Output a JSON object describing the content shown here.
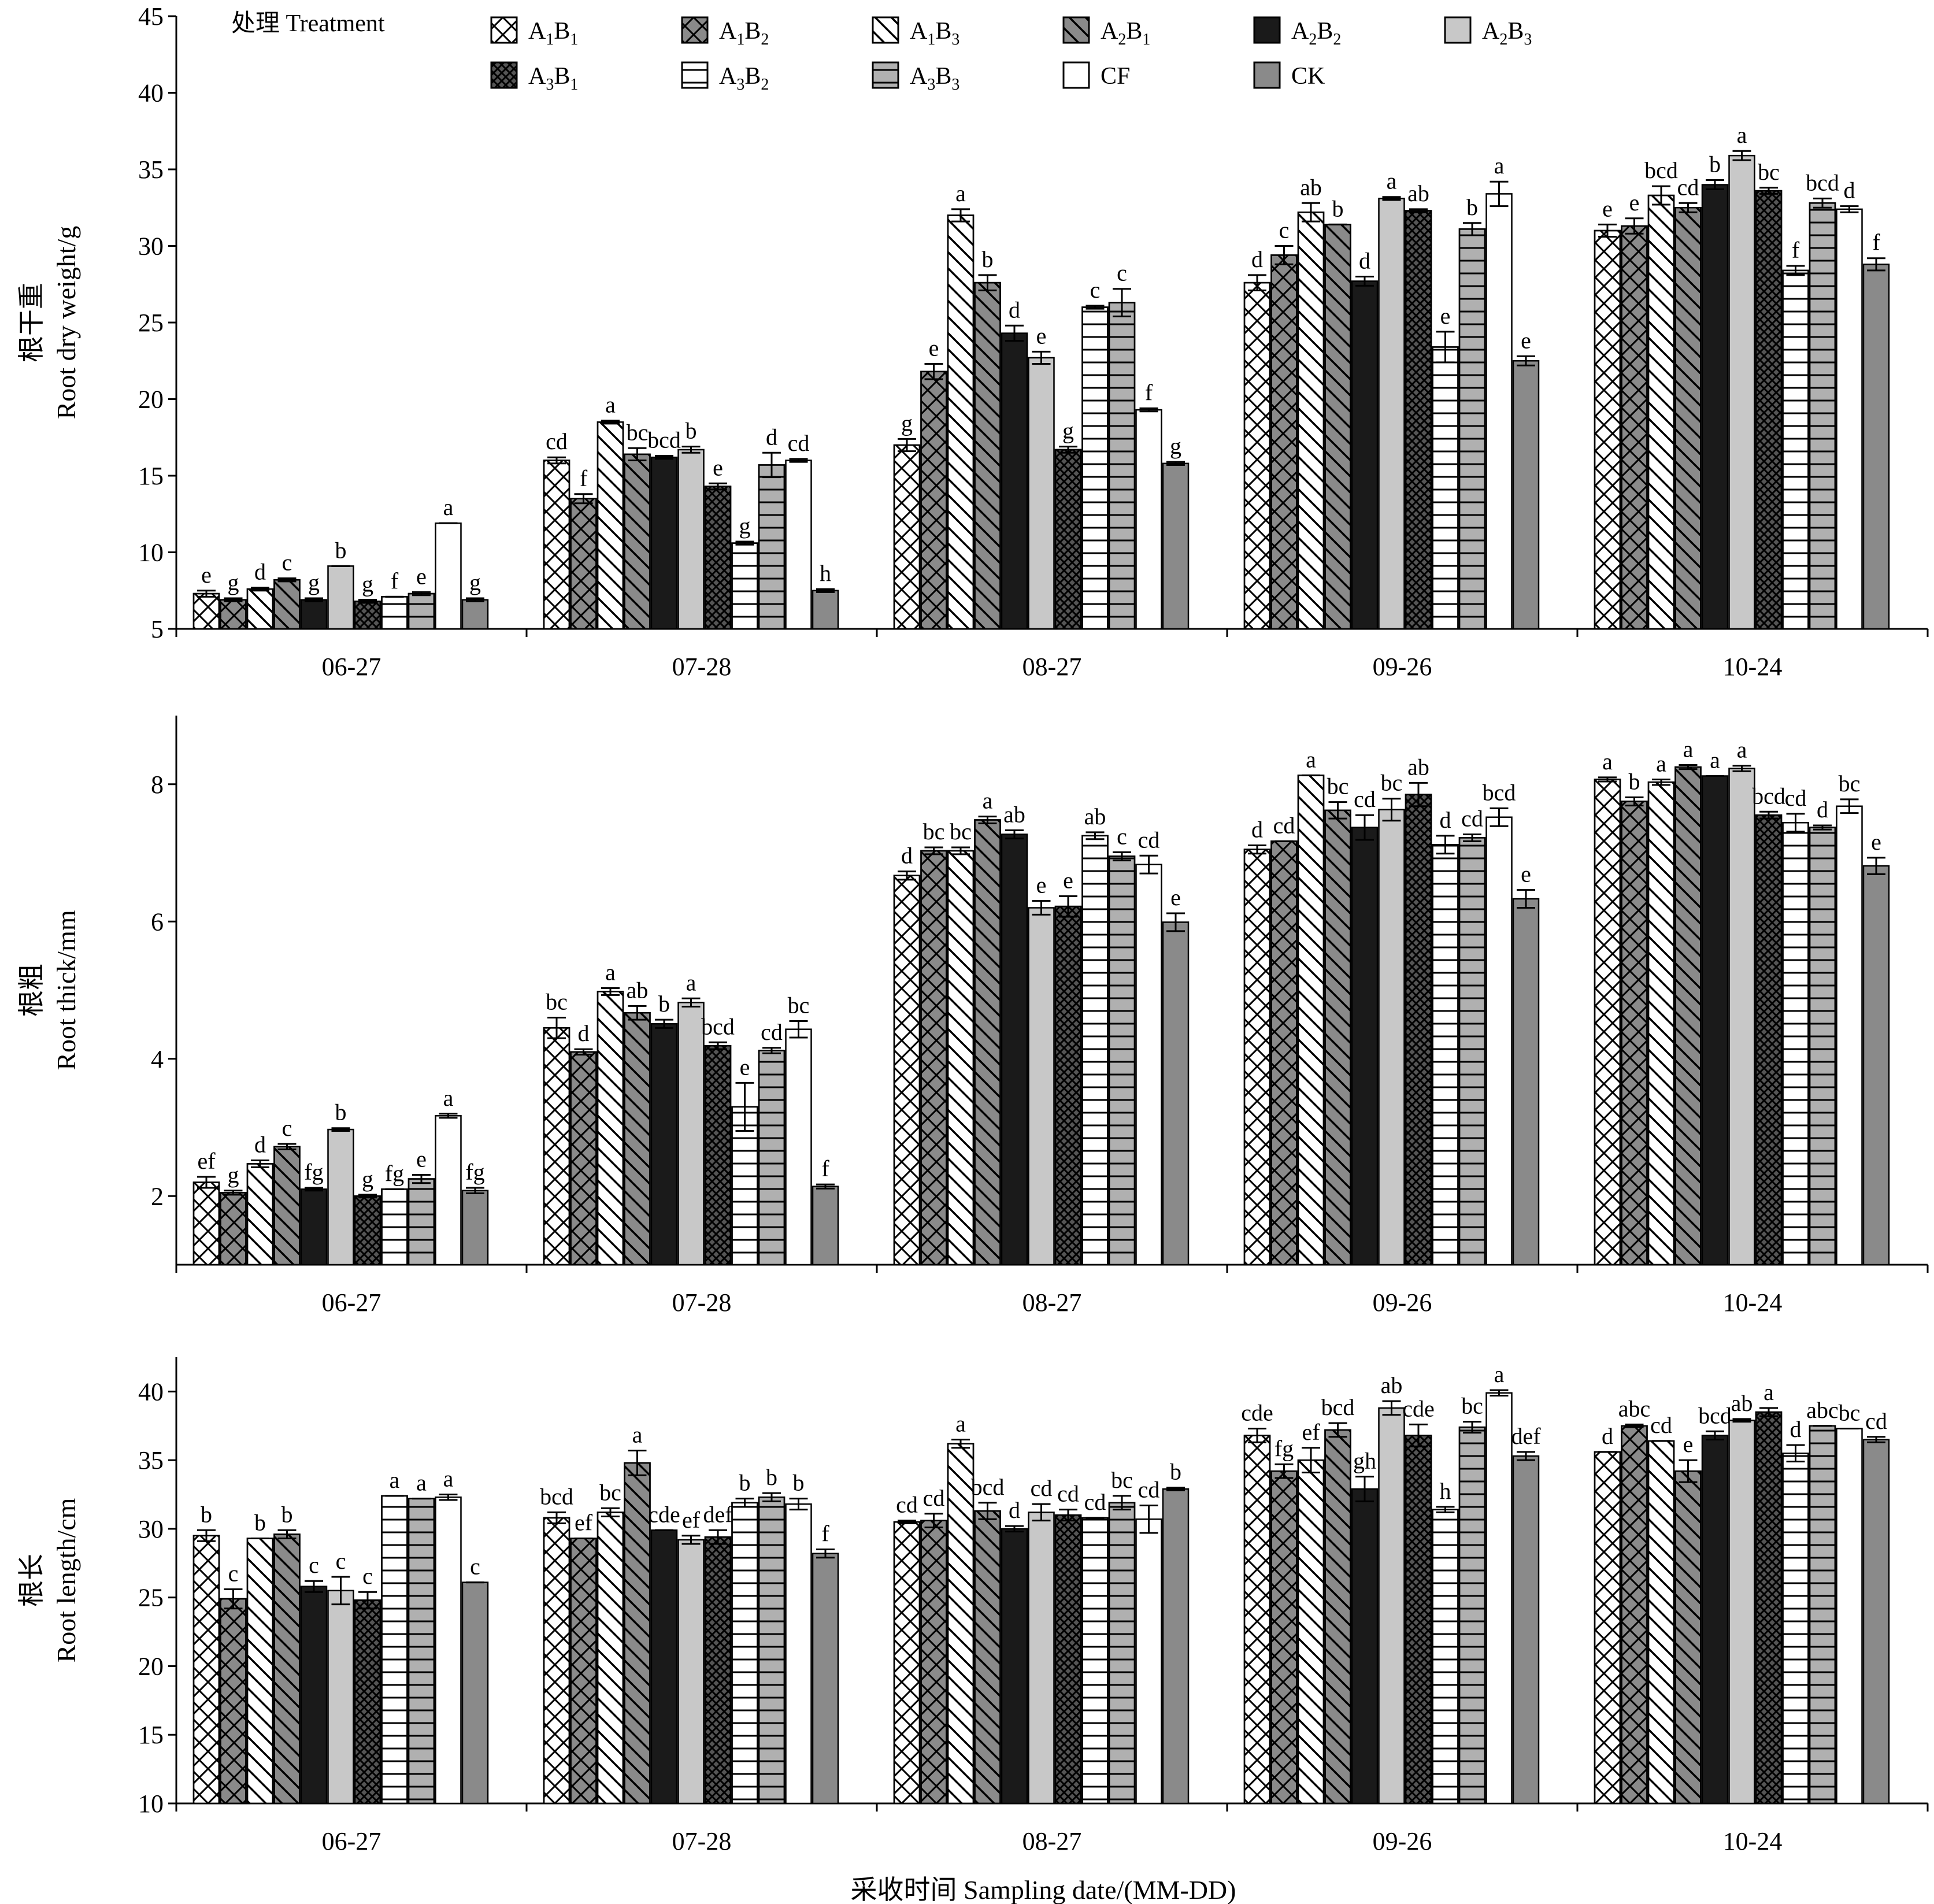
{
  "x_axis_title": "采收时间 Sampling date/(MM-DD)",
  "legend": {
    "title": "处理 Treatment",
    "items": [
      {
        "main": "A",
        "s1": "1",
        "mid": "B",
        "s2": "1",
        "pattern": "xhatch",
        "fill": "#ffffff"
      },
      {
        "main": "A",
        "s1": "1",
        "mid": "B",
        "s2": "2",
        "pattern": "xhatch",
        "fill": "#8a8a8a"
      },
      {
        "main": "A",
        "s1": "1",
        "mid": "B",
        "s2": "3",
        "pattern": "bdiag",
        "fill": "#ffffff"
      },
      {
        "main": "A",
        "s1": "2",
        "mid": "B",
        "s2": "1",
        "pattern": "bdiag",
        "fill": "#8a8a8a"
      },
      {
        "main": "A",
        "s1": "2",
        "mid": "B",
        "s2": "2",
        "pattern": "none",
        "fill": "#1a1a1a"
      },
      {
        "main": "A",
        "s1": "2",
        "mid": "B",
        "s2": "3",
        "pattern": "none",
        "fill": "#c8c8c8"
      },
      {
        "main": "A",
        "s1": "3",
        "mid": "B",
        "s2": "1",
        "pattern": "dots",
        "fill": "#555555"
      },
      {
        "main": "A",
        "s1": "3",
        "mid": "B",
        "s2": "2",
        "pattern": "hlines",
        "fill": "#ffffff"
      },
      {
        "main": "A",
        "s1": "3",
        "mid": "B",
        "s2": "3",
        "pattern": "hlines",
        "fill": "#b0b0b0"
      },
      {
        "main": "CF",
        "s1": "",
        "mid": "",
        "s2": "",
        "pattern": "none",
        "fill": "#ffffff"
      },
      {
        "main": "CK",
        "s1": "",
        "mid": "",
        "s2": "",
        "pattern": "none",
        "fill": "#8a8a8a"
      }
    ]
  },
  "chart_data": [
    {
      "type": "bar",
      "ylabel_cn": "根干重",
      "ylabel_en": "Root dry weight/g",
      "ylim": [
        5,
        45
      ],
      "yticks": [
        5,
        10,
        15,
        20,
        25,
        30,
        35,
        40,
        45
      ],
      "categories": [
        "06-27",
        "07-28",
        "08-27",
        "09-26",
        "10-24"
      ],
      "series": [
        {
          "name": "A1B1",
          "values": [
            7.3,
            16.0,
            17.0,
            27.6,
            31.0
          ],
          "errors": [
            0.2,
            0.2,
            0.4,
            0.5,
            0.4
          ],
          "labels": [
            "e",
            "cd",
            "g",
            "d",
            "e"
          ]
        },
        {
          "name": "A1B2",
          "values": [
            6.9,
            13.5,
            21.8,
            29.4,
            31.3
          ],
          "errors": [
            0.1,
            0.3,
            0.5,
            0.6,
            0.5
          ],
          "labels": [
            "g",
            "f",
            "e",
            "c",
            "e"
          ]
        },
        {
          "name": "A1B3",
          "values": [
            7.6,
            18.5,
            32.0,
            32.2,
            33.3
          ],
          "errors": [
            0.1,
            0.1,
            0.4,
            0.6,
            0.6
          ],
          "labels": [
            "d",
            "a",
            "a",
            "ab",
            "bcd"
          ]
        },
        {
          "name": "A2B1",
          "values": [
            8.2,
            16.4,
            27.6,
            31.4,
            32.5
          ],
          "errors": [
            0.1,
            0.4,
            0.5,
            0.0,
            0.3
          ],
          "labels": [
            "c",
            "bc",
            "b",
            "b",
            "cd"
          ]
        },
        {
          "name": "A2B2",
          "values": [
            6.9,
            16.2,
            24.3,
            27.7,
            34.0
          ],
          "errors": [
            0.1,
            0.1,
            0.5,
            0.3,
            0.3
          ],
          "labels": [
            "g",
            "bcd",
            "d",
            "d",
            "b"
          ]
        },
        {
          "name": "A2B3",
          "values": [
            9.1,
            16.7,
            22.7,
            33.1,
            35.9
          ],
          "errors": [
            0.0,
            0.2,
            0.4,
            0.1,
            0.3
          ],
          "labels": [
            "b",
            "b",
            "e",
            "a",
            "a"
          ]
        },
        {
          "name": "A3B1",
          "values": [
            6.8,
            14.3,
            16.7,
            32.3,
            33.6
          ],
          "errors": [
            0.1,
            0.2,
            0.2,
            0.1,
            0.2
          ],
          "labels": [
            "g",
            "e",
            "g",
            "ab",
            "bc"
          ]
        },
        {
          "name": "A3B2",
          "values": [
            7.1,
            10.6,
            26.0,
            23.4,
            28.4
          ],
          "errors": [
            0.0,
            0.1,
            0.1,
            1.0,
            0.3
          ],
          "labels": [
            "f",
            "g",
            "c",
            "e",
            "f"
          ]
        },
        {
          "name": "A3B3",
          "values": [
            7.3,
            15.7,
            26.3,
            31.1,
            32.8
          ],
          "errors": [
            0.1,
            0.8,
            0.9,
            0.4,
            0.3
          ],
          "labels": [
            "e",
            "d",
            "c",
            "b",
            "bcd"
          ]
        },
        {
          "name": "CF",
          "values": [
            11.9,
            16.0,
            19.3,
            33.4,
            32.4
          ],
          "errors": [
            0.0,
            0.1,
            0.1,
            0.8,
            0.2
          ],
          "labels": [
            "a",
            "cd",
            "f",
            "a",
            "d"
          ]
        },
        {
          "name": "CK",
          "values": [
            6.9,
            7.5,
            15.8,
            22.5,
            28.8
          ],
          "errors": [
            0.1,
            0.1,
            0.1,
            0.3,
            0.4
          ],
          "labels": [
            "g",
            "h",
            "g",
            "e",
            "f"
          ]
        }
      ]
    },
    {
      "type": "bar",
      "ylabel_cn": "根粗",
      "ylabel_en": "Root thick/mm",
      "ylim": [
        1,
        9
      ],
      "yticks": [
        2,
        4,
        6,
        8
      ],
      "categories": [
        "06-27",
        "07-28",
        "08-27",
        "09-26",
        "10-24"
      ],
      "series": [
        {
          "name": "A1B1",
          "values": [
            2.2,
            4.45,
            6.67,
            7.05,
            8.07
          ],
          "errors": [
            0.08,
            0.15,
            0.06,
            0.06,
            0.03
          ],
          "labels": [
            "ef",
            "bc",
            "d",
            "d",
            "a"
          ]
        },
        {
          "name": "A1B2",
          "values": [
            2.05,
            4.1,
            7.03,
            7.17,
            7.75
          ],
          "errors": [
            0.03,
            0.04,
            0.05,
            0.0,
            0.06
          ],
          "labels": [
            "g",
            "d",
            "bc",
            "cd",
            "b"
          ]
        },
        {
          "name": "A1B3",
          "values": [
            2.47,
            4.98,
            7.03,
            8.13,
            8.03
          ],
          "errors": [
            0.05,
            0.05,
            0.05,
            0.0,
            0.04
          ],
          "labels": [
            "d",
            "a",
            "bc",
            "a",
            "a"
          ]
        },
        {
          "name": "A2B1",
          "values": [
            2.72,
            4.67,
            7.48,
            7.62,
            8.25
          ],
          "errors": [
            0.04,
            0.1,
            0.05,
            0.12,
            0.03
          ],
          "labels": [
            "c",
            "ab",
            "a",
            "bc",
            "a"
          ]
        },
        {
          "name": "A2B2",
          "values": [
            2.1,
            4.51,
            7.27,
            7.37,
            8.12
          ],
          "errors": [
            0.02,
            0.06,
            0.06,
            0.18,
            0.0
          ],
          "labels": [
            "fg",
            "b",
            "ab",
            "cd",
            "a"
          ]
        },
        {
          "name": "A2B3",
          "values": [
            2.97,
            4.82,
            6.2,
            7.63,
            8.23
          ],
          "errors": [
            0.02,
            0.06,
            0.1,
            0.16,
            0.04
          ],
          "labels": [
            "b",
            "a",
            "e",
            "bc",
            "a"
          ]
        },
        {
          "name": "A3B1",
          "values": [
            2.0,
            4.19,
            6.22,
            7.85,
            7.55
          ],
          "errors": [
            0.02,
            0.05,
            0.15,
            0.17,
            0.05
          ],
          "labels": [
            "g",
            "bcd",
            "e",
            "ab",
            "bcd"
          ]
        },
        {
          "name": "A3B2",
          "values": [
            2.1,
            3.3,
            7.25,
            7.12,
            7.44
          ],
          "errors": [
            0.0,
            0.35,
            0.05,
            0.13,
            0.13
          ],
          "labels": [
            "fg",
            "e",
            "ab",
            "d",
            "cd"
          ]
        },
        {
          "name": "A3B3",
          "values": [
            2.25,
            4.12,
            6.95,
            7.22,
            7.37
          ],
          "errors": [
            0.06,
            0.04,
            0.06,
            0.05,
            0.03
          ],
          "labels": [
            "e",
            "cd",
            "c",
            "cd",
            "d"
          ]
        },
        {
          "name": "CF",
          "values": [
            3.17,
            4.43,
            6.83,
            7.52,
            7.68
          ],
          "errors": [
            0.03,
            0.12,
            0.13,
            0.13,
            0.1
          ],
          "labels": [
            "a",
            "bc",
            "cd",
            "bcd",
            "bc"
          ]
        },
        {
          "name": "CK",
          "values": [
            2.08,
            2.14,
            5.99,
            6.33,
            6.81
          ],
          "errors": [
            0.04,
            0.03,
            0.13,
            0.13,
            0.12
          ],
          "labels": [
            "fg",
            "f",
            "e",
            "e",
            "e"
          ]
        }
      ]
    },
    {
      "type": "bar",
      "ylabel_cn": "根长",
      "ylabel_en": "Root length/cm",
      "ylim": [
        10,
        42.5
      ],
      "yticks": [
        10,
        15,
        20,
        25,
        30,
        35,
        40
      ],
      "categories": [
        "06-27",
        "07-28",
        "08-27",
        "09-26",
        "10-24"
      ],
      "series": [
        {
          "name": "A1B1",
          "values": [
            29.5,
            30.8,
            30.5,
            36.8,
            35.6
          ],
          "errors": [
            0.4,
            0.4,
            0.1,
            0.5,
            0.0
          ],
          "labels": [
            "b",
            "bcd",
            "cd",
            "cde",
            "d"
          ]
        },
        {
          "name": "A1B2",
          "values": [
            24.9,
            29.3,
            30.6,
            34.2,
            37.5
          ],
          "errors": [
            0.7,
            0.0,
            0.5,
            0.5,
            0.1
          ],
          "labels": [
            "c",
            "ef",
            "cd",
            "fg",
            "abc"
          ]
        },
        {
          "name": "A1B3",
          "values": [
            29.3,
            31.2,
            36.2,
            35.0,
            36.4
          ],
          "errors": [
            0.0,
            0.3,
            0.3,
            0.9,
            0.0
          ],
          "labels": [
            "b",
            "bc",
            "a",
            "ef",
            "cd"
          ]
        },
        {
          "name": "A2B1",
          "values": [
            29.6,
            34.8,
            31.3,
            37.2,
            34.2
          ],
          "errors": [
            0.3,
            0.9,
            0.6,
            0.5,
            0.8
          ],
          "labels": [
            "b",
            "a",
            "bcd",
            "bcd",
            "e"
          ]
        },
        {
          "name": "A2B2",
          "values": [
            25.8,
            29.9,
            30.0,
            32.9,
            36.8
          ],
          "errors": [
            0.4,
            0.0,
            0.2,
            0.9,
            0.3
          ],
          "labels": [
            "c",
            "cde",
            "d",
            "gh",
            "bcd"
          ]
        },
        {
          "name": "A2B3",
          "values": [
            25.5,
            29.2,
            31.2,
            38.8,
            37.9
          ],
          "errors": [
            1.0,
            0.3,
            0.6,
            0.5,
            0.1
          ],
          "labels": [
            "c",
            "ef",
            "cd",
            "ab",
            "ab"
          ]
        },
        {
          "name": "A3B1",
          "values": [
            24.8,
            29.4,
            31.0,
            36.8,
            38.5
          ],
          "errors": [
            0.6,
            0.5,
            0.4,
            0.8,
            0.3
          ],
          "labels": [
            "c",
            "def",
            "cd",
            "cde",
            "a"
          ]
        },
        {
          "name": "A3B2",
          "values": [
            32.4,
            31.9,
            30.8,
            31.4,
            35.5
          ],
          "errors": [
            0.0,
            0.3,
            0.0,
            0.2,
            0.6
          ],
          "labels": [
            "a",
            "b",
            "cd",
            "h",
            "d"
          ]
        },
        {
          "name": "A3B3",
          "values": [
            32.2,
            32.3,
            31.9,
            37.4,
            37.5
          ],
          "errors": [
            0.0,
            0.3,
            0.5,
            0.4,
            0.0
          ],
          "labels": [
            "a",
            "b",
            "bc",
            "bc",
            "abc"
          ]
        },
        {
          "name": "CF",
          "values": [
            32.3,
            31.8,
            30.7,
            39.9,
            37.3
          ],
          "errors": [
            0.2,
            0.4,
            1.0,
            0.2,
            0.0
          ],
          "labels": [
            "a",
            "b",
            "cd",
            "a",
            "bc"
          ]
        },
        {
          "name": "CK",
          "values": [
            26.1,
            28.2,
            32.9,
            35.3,
            36.5
          ],
          "errors": [
            0.0,
            0.3,
            0.1,
            0.3,
            0.2
          ],
          "labels": [
            "c",
            "f",
            "b",
            "def",
            "cd"
          ]
        }
      ]
    }
  ]
}
